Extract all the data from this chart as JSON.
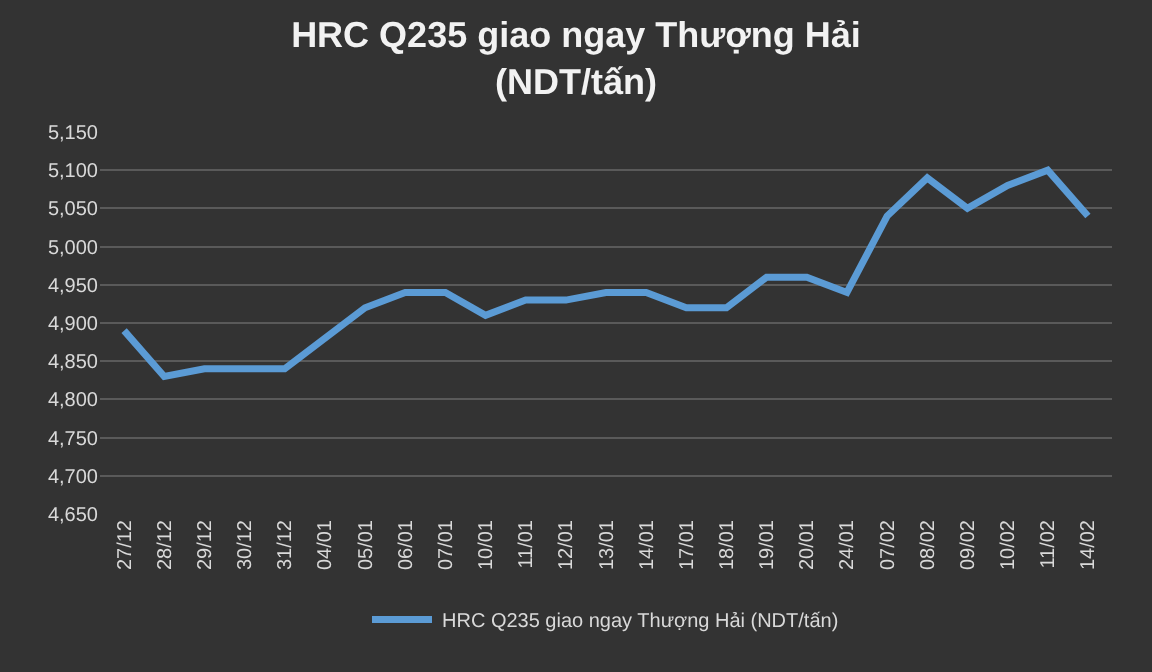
{
  "chart_data": {
    "type": "line",
    "title": "HRC Q235 giao ngay Thượng Hải\n(NDT/tấn)",
    "categories": [
      "27/12",
      "28/12",
      "29/12",
      "30/12",
      "31/12",
      "04/01",
      "05/01",
      "06/01",
      "07/01",
      "10/01",
      "11/01",
      "12/01",
      "13/01",
      "14/01",
      "17/01",
      "18/01",
      "19/01",
      "20/01",
      "24/01",
      "07/02",
      "08/02",
      "09/02",
      "10/02",
      "11/02",
      "14/02"
    ],
    "series": [
      {
        "name": "HRC Q235 giao ngay Thượng Hải (NDT/tấn)",
        "color": "#5b9bd5",
        "values": [
          4890,
          4830,
          4840,
          4840,
          4840,
          4880,
          4920,
          4940,
          4940,
          4910,
          4930,
          4930,
          4940,
          4940,
          4920,
          4920,
          4960,
          4960,
          4940,
          5040,
          5090,
          5050,
          5080,
          5100,
          5040
        ]
      }
    ],
    "ylim": [
      4650,
      5150
    ],
    "yticks": [
      {
        "value": 4650,
        "label": "4,650"
      },
      {
        "value": 4700,
        "label": "4,700"
      },
      {
        "value": 4750,
        "label": "4,750"
      },
      {
        "value": 4800,
        "label": "4,800"
      },
      {
        "value": 4850,
        "label": "4,850"
      },
      {
        "value": 4900,
        "label": "4,900"
      },
      {
        "value": 4950,
        "label": "4,950"
      },
      {
        "value": 5000,
        "label": "5,000"
      },
      {
        "value": 5050,
        "label": "5,050"
      },
      {
        "value": 5100,
        "label": "5,100"
      },
      {
        "value": 5150,
        "label": "5,150"
      }
    ],
    "grid": "y",
    "legend": "bottom",
    "marker": "none",
    "line_style": "solid"
  }
}
